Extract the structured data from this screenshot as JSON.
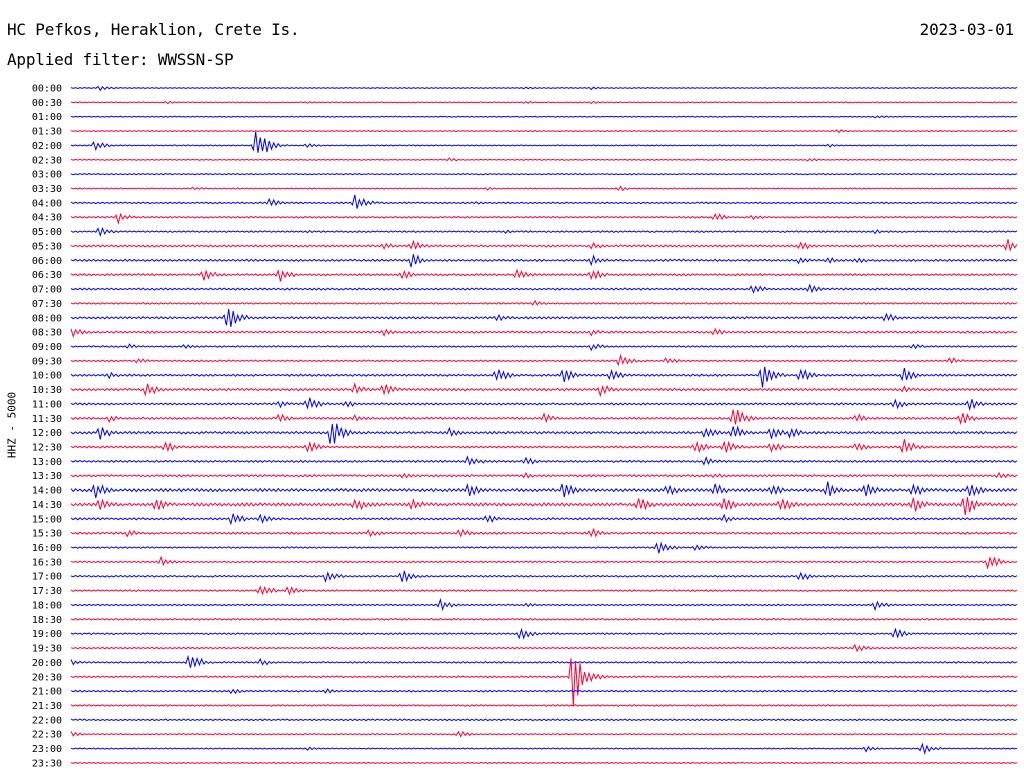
{
  "header": {
    "station": "HC Pefkos, Heraklion, Crete Is.",
    "date": "2023-03-01",
    "filter": "Applied filter: WWSSN-SP",
    "channel": "HHZ - 5000"
  },
  "colors": {
    "blue": "#0000ff",
    "red": "#ff0033"
  },
  "chart_data": {
    "type": "line",
    "title": "HC Pefkos, Heraklion, Crete Is.",
    "subtitle": "Applied filter: WWSSN-SP",
    "ylabel": "HHZ - 5000",
    "grid": false,
    "categories": [
      "00:00",
      "00:30",
      "01:00",
      "01:30",
      "02:00",
      "02:30",
      "03:00",
      "03:30",
      "04:00",
      "04:30",
      "05:00",
      "05:30",
      "06:00",
      "06:30",
      "07:00",
      "07:30",
      "08:00",
      "08:30",
      "09:00",
      "09:30",
      "10:00",
      "10:30",
      "11:00",
      "11:30",
      "12:00",
      "12:30",
      "13:00",
      "13:30",
      "14:00",
      "14:30",
      "15:00",
      "15:30",
      "16:00",
      "16:30",
      "17:00",
      "17:30",
      "18:00",
      "18:30",
      "19:00",
      "19:30",
      "20:00",
      "20:30",
      "21:00",
      "21:30",
      "22:00",
      "22:30",
      "23:00",
      "23:30"
    ],
    "trace_colors": [
      "blue",
      "red"
    ],
    "noise_levels": [
      0.5,
      0.5,
      0.5,
      0.5,
      0.6,
      0.5,
      0.6,
      0.6,
      0.8,
      0.8,
      0.8,
      1.0,
      1.0,
      1.0,
      1.0,
      0.8,
      1.0,
      1.0,
      0.8,
      0.8,
      1.0,
      1.2,
      1.0,
      1.0,
      1.2,
      1.0,
      1.0,
      1.0,
      1.5,
      1.5,
      1.0,
      1.0,
      0.8,
      0.8,
      0.8,
      0.8,
      0.8,
      0.8,
      0.8,
      0.8,
      0.8,
      0.8,
      0.8,
      0.8,
      0.8,
      0.6,
      0.6,
      0.6
    ],
    "events": [
      [
        [
          0.03,
          3
        ],
        [
          0.48,
          1.5
        ],
        [
          0.55,
          1.5
        ]
      ],
      [
        [
          0.1,
          1.5
        ],
        [
          0.25,
          1.5
        ],
        [
          0.48,
          1.5
        ],
        [
          0.55,
          2
        ]
      ],
      [
        [
          0.85,
          2
        ]
      ],
      [
        [
          0.81,
          2
        ]
      ],
      [
        [
          0.025,
          5
        ],
        [
          0.195,
          20
        ],
        [
          0.25,
          3
        ],
        [
          0.8,
          2
        ]
      ],
      [
        [
          0.4,
          2
        ],
        [
          0.78,
          2
        ]
      ],
      [],
      [
        [
          0.13,
          2
        ],
        [
          0.44,
          2
        ],
        [
          0.58,
          2.5
        ]
      ],
      [
        [
          0.21,
          5
        ],
        [
          0.3,
          9
        ],
        [
          0.43,
          2
        ]
      ],
      [
        [
          0.05,
          6
        ],
        [
          0.68,
          5
        ],
        [
          0.72,
          3
        ]
      ],
      [
        [
          0.03,
          5
        ],
        [
          0.25,
          2
        ],
        [
          0.46,
          2
        ],
        [
          0.85,
          2
        ]
      ],
      [
        [
          0.33,
          4
        ],
        [
          0.36,
          6
        ],
        [
          0.55,
          4
        ],
        [
          0.77,
          6
        ],
        [
          0.99,
          7
        ]
      ],
      [
        [
          0.36,
          8
        ],
        [
          0.55,
          6
        ],
        [
          0.77,
          4
        ],
        [
          0.8,
          4
        ],
        [
          0.83,
          4
        ]
      ],
      [
        [
          0.14,
          7
        ],
        [
          0.22,
          8
        ],
        [
          0.35,
          5
        ],
        [
          0.47,
          6
        ],
        [
          0.55,
          7
        ]
      ],
      [
        [
          0.72,
          6
        ],
        [
          0.78,
          5
        ]
      ],
      [
        [
          0.49,
          3
        ]
      ],
      [
        [
          0.165,
          15
        ],
        [
          0.45,
          5
        ],
        [
          0.86,
          6
        ]
      ],
      [
        [
          0.0,
          6
        ],
        [
          0.33,
          4
        ],
        [
          0.55,
          4
        ],
        [
          0.68,
          4
        ]
      ],
      [
        [
          0.06,
          3
        ],
        [
          0.12,
          3
        ],
        [
          0.55,
          4
        ],
        [
          0.89,
          3
        ]
      ],
      [
        [
          0.07,
          3
        ],
        [
          0.58,
          7
        ],
        [
          0.63,
          4
        ],
        [
          0.93,
          4
        ]
      ],
      [
        [
          0.04,
          4
        ],
        [
          0.45,
          8
        ],
        [
          0.52,
          8
        ],
        [
          0.57,
          8
        ],
        [
          0.73,
          14
        ],
        [
          0.77,
          8
        ],
        [
          0.88,
          8
        ]
      ],
      [
        [
          0.08,
          8
        ],
        [
          0.3,
          6
        ],
        [
          0.33,
          8
        ],
        [
          0.56,
          7
        ],
        [
          0.88,
          4
        ]
      ],
      [
        [
          0.22,
          4
        ],
        [
          0.25,
          8
        ],
        [
          0.29,
          4
        ],
        [
          0.87,
          6
        ],
        [
          0.95,
          6
        ]
      ],
      [
        [
          0.04,
          4
        ],
        [
          0.22,
          5
        ],
        [
          0.3,
          4
        ],
        [
          0.5,
          5
        ],
        [
          0.7,
          14
        ],
        [
          0.83,
          5
        ],
        [
          0.94,
          8
        ]
      ],
      [
        [
          0.03,
          8
        ],
        [
          0.275,
          16
        ],
        [
          0.4,
          5
        ],
        [
          0.67,
          7
        ],
        [
          0.7,
          9
        ],
        [
          0.74,
          9
        ],
        [
          0.76,
          6
        ]
      ],
      [
        [
          0.1,
          7
        ],
        [
          0.25,
          7
        ],
        [
          0.66,
          8
        ],
        [
          0.69,
          9
        ],
        [
          0.74,
          6
        ],
        [
          0.83,
          5
        ],
        [
          0.88,
          9
        ]
      ],
      [
        [
          0.42,
          7
        ],
        [
          0.48,
          5
        ],
        [
          0.67,
          5
        ]
      ],
      [
        [
          0.35,
          3
        ],
        [
          0.48,
          3
        ],
        [
          0.68,
          3
        ],
        [
          0.98,
          4
        ]
      ],
      [
        [
          0.025,
          9
        ],
        [
          0.42,
          8
        ],
        [
          0.52,
          9
        ],
        [
          0.63,
          7
        ],
        [
          0.68,
          8
        ],
        [
          0.74,
          7
        ],
        [
          0.8,
          10
        ],
        [
          0.84,
          8
        ],
        [
          0.89,
          8
        ],
        [
          0.95,
          9
        ]
      ],
      [
        [
          0.03,
          7
        ],
        [
          0.09,
          8
        ],
        [
          0.3,
          9
        ],
        [
          0.36,
          6
        ],
        [
          0.6,
          9
        ],
        [
          0.69,
          9
        ],
        [
          0.75,
          9
        ],
        [
          0.89,
          9
        ],
        [
          0.945,
          13
        ]
      ],
      [
        [
          0.17,
          7
        ],
        [
          0.2,
          5
        ],
        [
          0.44,
          5
        ],
        [
          0.69,
          4
        ]
      ],
      [
        [
          0.06,
          5
        ],
        [
          0.315,
          5
        ],
        [
          0.41,
          5
        ],
        [
          0.55,
          5
        ]
      ],
      [
        [
          0.62,
          8
        ],
        [
          0.66,
          4
        ]
      ],
      [
        [
          0.095,
          5
        ],
        [
          0.97,
          8
        ]
      ],
      [
        [
          0.27,
          7
        ],
        [
          0.35,
          7
        ],
        [
          0.77,
          6
        ]
      ],
      [
        [
          0.2,
          8
        ],
        [
          0.23,
          5
        ]
      ],
      [
        [
          0.39,
          6
        ],
        [
          0.48,
          3
        ],
        [
          0.85,
          5
        ]
      ],
      [],
      [
        [
          0.475,
          7
        ],
        [
          0.87,
          6
        ]
      ],
      [
        [
          0.83,
          5
        ]
      ],
      [
        [
          0.0,
          3
        ],
        [
          0.125,
          11
        ],
        [
          0.2,
          4
        ]
      ],
      [
        [
          0.53,
          32
        ]
      ],
      [
        [
          0.17,
          3
        ],
        [
          0.27,
          3
        ]
      ],
      [],
      [],
      [
        [
          0.0,
          3
        ],
        [
          0.41,
          4
        ]
      ],
      [
        [
          0.25,
          2
        ],
        [
          0.84,
          4
        ],
        [
          0.9,
          6
        ]
      ],
      []
    ]
  }
}
